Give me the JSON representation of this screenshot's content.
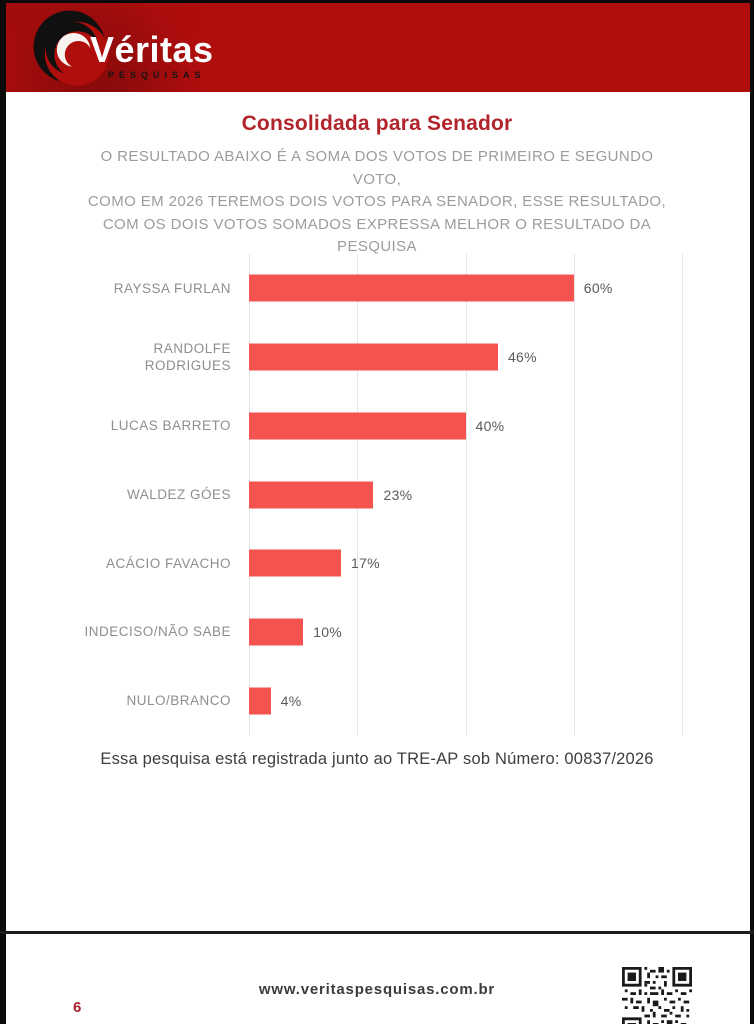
{
  "header": {
    "logo_text": "Véritas",
    "logo_subtext": "PESQUISAS"
  },
  "title": "Consolidada para Senador",
  "subtitle_lines": [
    "O RESULTADO ABAIXO É A SOMA DOS VOTOS DE PRIMEIRO E SEGUNDO VOTO,",
    "COMO EM 2026 TEREMOS DOIS VOTOS PARA SENADOR, ESSE RESULTADO,",
    "COM OS DOIS VOTOS SOMADOS EXPRESSA MELHOR O RESULTADO DA",
    "PESQUISA"
  ],
  "chart_data": {
    "type": "bar",
    "orientation": "horizontal",
    "title": "Consolidada para Senador",
    "categories": [
      "RAYSSA FURLAN",
      "RANDOLFE\nRODRIGUES",
      "LUCAS BARRETO",
      "WALDEZ GÓES",
      "ACÁCIO FAVACHO",
      "INDECISO/NÃO SABE",
      "NULO/BRANCO"
    ],
    "values": [
      60,
      46,
      40,
      23,
      17,
      10,
      4
    ],
    "value_labels": [
      "60%",
      "46%",
      "40%",
      "23%",
      "17%",
      "10%",
      "4%"
    ],
    "xlabel": "",
    "ylabel": "",
    "xlim": [
      0,
      80
    ],
    "gridline_interval": 20,
    "grid": true,
    "legend": false,
    "bar_color": "#f4534f"
  },
  "registration_note": "Essa pesquisa está registrada junto ao TRE-AP sob Número: 00837/2026",
  "footer": {
    "page_number": "6",
    "website": "www.veritaspesquisas.com.br"
  },
  "colors": {
    "banner_red": "#b00d0d",
    "title_red": "#b2242b",
    "bar_coral": "#f4534f",
    "subtitle_gray": "#9c9c9c",
    "label_gray": "#8e8e8e",
    "page_number_red": "#a8232e"
  },
  "icons": {
    "logo_swirl": "veritas-swirl-icon",
    "qr": "qr-code"
  }
}
